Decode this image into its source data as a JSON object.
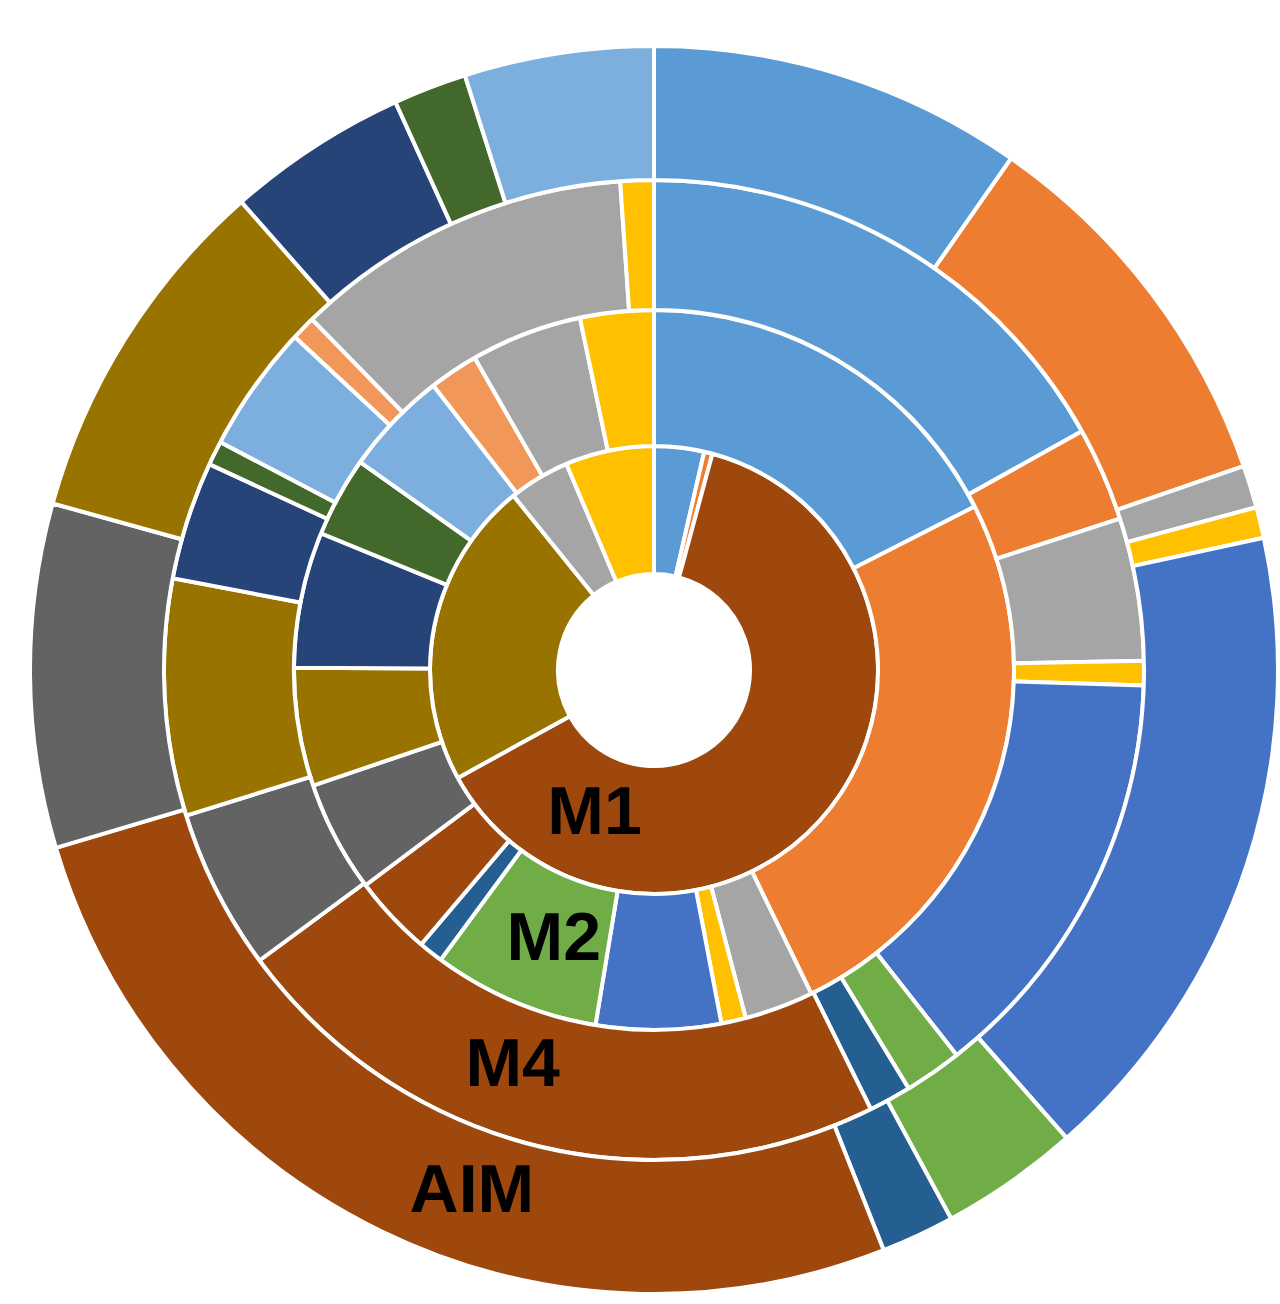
{
  "chart_data": {
    "type": "donut",
    "series": [
      {
        "name": "M1",
        "values": [
          3.6,
          0.6,
          62.8,
          22.2,
          4.4,
          6.4
        ],
        "colors": [
          "#5b9bd5",
          "#ed7d31",
          "#9e480e",
          "#997300",
          "#a5a5a5",
          "#ffc000"
        ]
      },
      {
        "name": "M2",
        "values": [
          17.5,
          25.3,
          3.1,
          1.1,
          5.6,
          7.5,
          1.1,
          3.6,
          5,
          5.3,
          6.1,
          3.6,
          4.7,
          2.2,
          5,
          3.3
        ],
        "colors": [
          "#5b9bd5",
          "#ed7d31",
          "#a5a5a5",
          "#ffc000",
          "#4472c4",
          "#70ad47",
          "#255e91",
          "#9e480e",
          "#636363",
          "#997300",
          "#264478",
          "#43682b",
          "#7cafdd",
          "#f1975a",
          "#a5a5a5",
          "#ffc000"
        ]
      },
      {
        "name": "M4",
        "values": [
          16.9,
          3.1,
          4.7,
          0.8,
          13.9,
          1.9,
          1.4,
          22.2,
          5.3,
          7.8,
          3.9,
          0.8,
          4.2,
          0.8,
          11.2,
          1.1
        ],
        "colors": [
          "#5b9bd5",
          "#ed7d31",
          "#a5a5a5",
          "#ffc000",
          "#4472c4",
          "#70ad47",
          "#255e91",
          "#9e480e",
          "#636363",
          "#997300",
          "#264478",
          "#43682b",
          "#7cafdd",
          "#f1975a",
          "#a5a5a5",
          "#ffc000"
        ]
      },
      {
        "name": "AIM",
        "values": [
          9.7,
          10,
          1.1,
          0.8,
          16.9,
          3.6,
          1.9,
          26.4,
          8.9,
          9.2,
          4.7,
          1.9,
          4.9
        ],
        "colors": [
          "#5b9bd5",
          "#ed7d31",
          "#a5a5a5",
          "#ffc000",
          "#4472c4",
          "#70ad47",
          "#255e91",
          "#9e480e",
          "#636363",
          "#997300",
          "#264478",
          "#43682b",
          "#7cafdd"
        ]
      }
    ]
  }
}
